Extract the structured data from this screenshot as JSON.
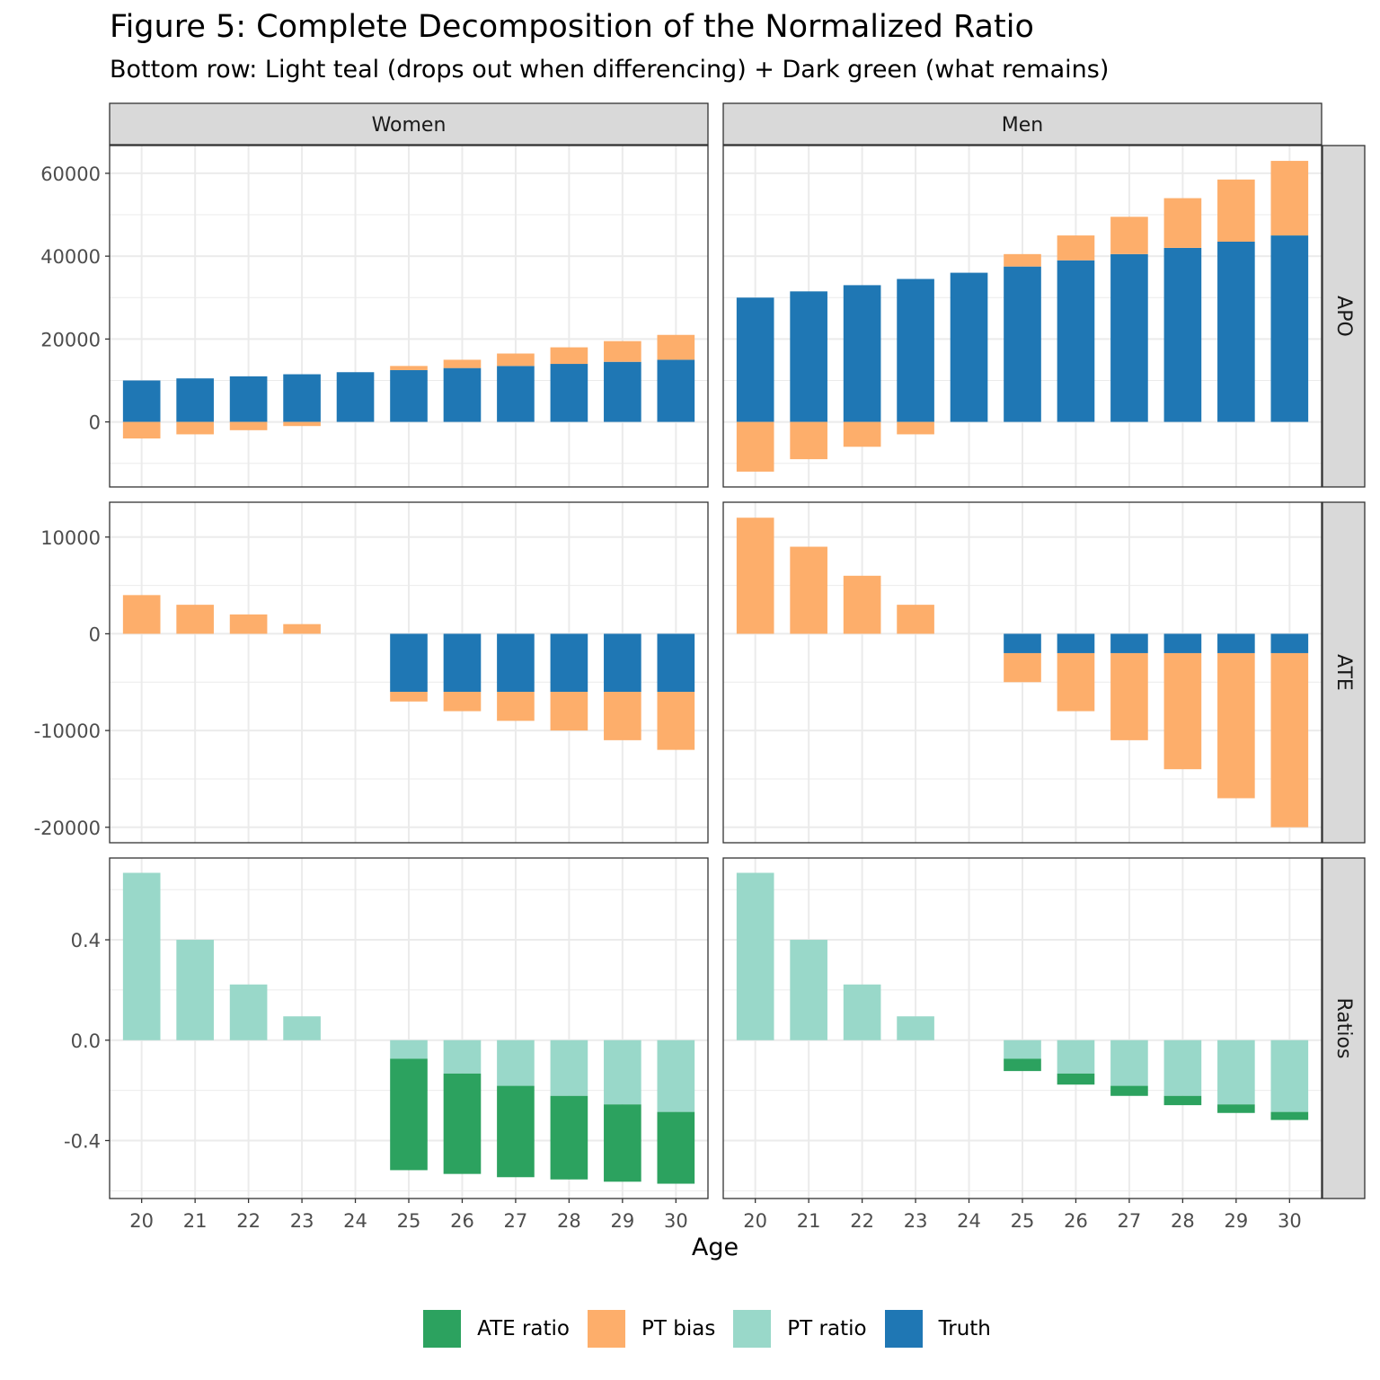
{
  "title": "Figure 5: Complete Decomposition of the Normalized Ratio",
  "subtitle": "Bottom row: Light teal (drops out when differencing) + Dark green (what remains)",
  "chart_data": {
    "type": "bar",
    "stacked": true,
    "title": "Figure 5: Complete Decomposition of the Normalized Ratio",
    "subtitle": "Bottom row: Light teal (drops out when differencing) + Dark green (what remains)",
    "xlabel": "Age",
    "ylabel": "",
    "x": [
      20,
      21,
      22,
      23,
      24,
      25,
      26,
      27,
      28,
      29,
      30
    ],
    "facet_columns": [
      "Women",
      "Men"
    ],
    "facet_rows": [
      "APO",
      "ATE",
      "Ratios"
    ],
    "grid": true,
    "legend_position": "bottom",
    "legend": [
      {
        "name": "ATE ratio",
        "color": "#2CA25F"
      },
      {
        "name": "PT bias",
        "color": "#FDAE6B"
      },
      {
        "name": "PT ratio",
        "color": "#99D8C9"
      },
      {
        "name": "Truth",
        "color": "#1F77B4"
      }
    ],
    "rows": [
      {
        "name": "APO",
        "ylim": [
          -15700,
          66700
        ],
        "yticks": [
          0,
          20000,
          40000,
          60000
        ],
        "ytick_labels": [
          "0",
          "20000",
          "40000",
          "60000"
        ],
        "panels": {
          "Women": [
            {
              "name": "Truth",
              "color": "#1F77B4",
              "values": [
                10000,
                10500,
                11000,
                11500,
                12000,
                12500,
                13000,
                13500,
                14000,
                14500,
                15000
              ]
            },
            {
              "name": "PT bias",
              "color": "#FDAE6B",
              "values": [
                -4000,
                -3000,
                -2000,
                -1000,
                0,
                1000,
                2000,
                3000,
                4000,
                5000,
                6000
              ]
            }
          ],
          "Men": [
            {
              "name": "Truth",
              "color": "#1F77B4",
              "values": [
                30000,
                31500,
                33000,
                34500,
                36000,
                37500,
                39000,
                40500,
                42000,
                43500,
                45000
              ]
            },
            {
              "name": "PT bias",
              "color": "#FDAE6B",
              "values": [
                -12000,
                -9000,
                -6000,
                -3000,
                0,
                3000,
                6000,
                9000,
                12000,
                15000,
                18000
              ]
            }
          ]
        }
      },
      {
        "name": "ATE",
        "ylim": [
          -21600,
          13600
        ],
        "yticks": [
          -20000,
          -10000,
          0,
          10000
        ],
        "ytick_labels": [
          "-20000",
          "-10000",
          "0",
          "10000"
        ],
        "panels": {
          "Women": [
            {
              "name": "Truth",
              "color": "#1F77B4",
              "values": [
                0,
                0,
                0,
                0,
                0,
                -6000,
                -6000,
                -6000,
                -6000,
                -6000,
                -6000
              ]
            },
            {
              "name": "PT bias",
              "color": "#FDAE6B",
              "values": [
                4000,
                3000,
                2000,
                1000,
                0,
                -1000,
                -2000,
                -3000,
                -4000,
                -5000,
                -6000
              ]
            }
          ],
          "Men": [
            {
              "name": "Truth",
              "color": "#1F77B4",
              "values": [
                0,
                0,
                0,
                0,
                0,
                -2000,
                -2000,
                -2000,
                -2000,
                -2000,
                -2000
              ]
            },
            {
              "name": "PT bias",
              "color": "#FDAE6B",
              "values": [
                12000,
                9000,
                6000,
                3000,
                0,
                -3000,
                -6000,
                -9000,
                -12000,
                -15000,
                -18000
              ]
            }
          ]
        }
      },
      {
        "name": "Ratios",
        "ylim": [
          -0.631,
          0.726
        ],
        "yticks": [
          -0.4,
          0.0,
          0.4
        ],
        "ytick_labels": [
          "-0.4",
          "0.0",
          "0.4"
        ],
        "panels": {
          "Women": [
            {
              "name": "PT ratio",
              "color": "#99D8C9",
              "values": [
                0.667,
                0.4,
                0.222,
                0.095,
                0,
                -0.074,
                -0.133,
                -0.182,
                -0.222,
                -0.256,
                -0.286
              ]
            },
            {
              "name": "ATE ratio",
              "color": "#2CA25F",
              "values": [
                0,
                0,
                0,
                0,
                0,
                -0.444,
                -0.4,
                -0.364,
                -0.333,
                -0.308,
                -0.286
              ]
            }
          ],
          "Men": [
            {
              "name": "PT ratio",
              "color": "#99D8C9",
              "values": [
                0.667,
                0.4,
                0.222,
                0.095,
                0,
                -0.074,
                -0.133,
                -0.182,
                -0.222,
                -0.256,
                -0.286
              ]
            },
            {
              "name": "ATE ratio",
              "color": "#2CA25F",
              "values": [
                0,
                0,
                0,
                0,
                0,
                -0.049,
                -0.044,
                -0.04,
                -0.037,
                -0.034,
                -0.032
              ]
            }
          ]
        }
      }
    ]
  }
}
